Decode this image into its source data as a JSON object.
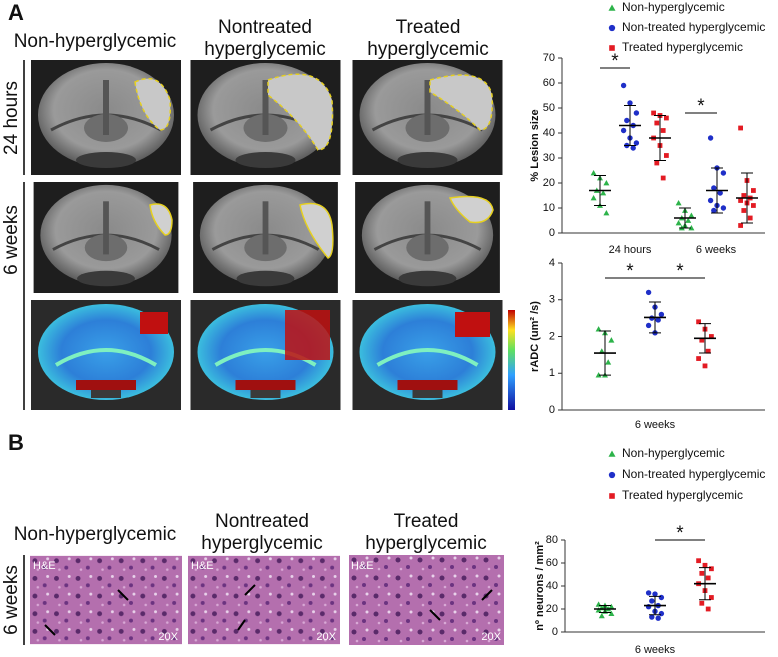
{
  "figure": {
    "panel_a": "A",
    "panel_b": "B",
    "headers_a": {
      "col1": "Non-hyperglycemic",
      "col2": [
        "Nontreated",
        "hyperglycemic"
      ],
      "col3": [
        "Treated",
        "hyperglycemic"
      ]
    },
    "rows_a": [
      "24 hours",
      "6 weeks"
    ],
    "headers_b": {
      "col1": "Non-hyperglycemic",
      "col2": [
        "Nontreated",
        "hyperglycemic"
      ],
      "col3": [
        "Treated",
        "hyperglycemic"
      ]
    },
    "row_b": "6 weeks",
    "stain": [
      "H&E",
      "H&E",
      "H&E"
    ],
    "magnification": [
      "20X",
      "20X",
      "20X"
    ]
  },
  "chart_data": [
    {
      "type": "dot",
      "ylabel": "% Lesion size",
      "categories": [
        "24 hours",
        "6 weeks"
      ],
      "ylim": [
        0,
        70
      ],
      "yticks": [
        0,
        10,
        20,
        30,
        40,
        50,
        60,
        70
      ],
      "annotations": [
        "*",
        "*"
      ],
      "series": [
        {
          "name": "Non-hyperglycemic",
          "color": "#2db34a",
          "marker": "triangle",
          "values": [
            [
              24,
              22,
              20,
              17,
              16,
              14,
              11,
              8
            ],
            [
              12,
              9,
              7,
              6,
              5,
              4,
              3,
              2,
              2
            ]
          ],
          "mean": [
            17,
            6
          ],
          "sd": [
            6,
            4
          ]
        },
        {
          "name": "Non-treated hyperglycemic",
          "color": "#1f2fc8",
          "marker": "circle",
          "values": [
            [
              59,
              52,
              48,
              45,
              43,
              41,
              38,
              36,
              35,
              34
            ],
            [
              38,
              26,
              24,
              18,
              16,
              13,
              11,
              10,
              9
            ]
          ],
          "mean": [
            43,
            17
          ],
          "sd": [
            8,
            9
          ]
        },
        {
          "name": "Treated hyperglycemic",
          "color": "#e31b23",
          "marker": "square",
          "values": [
            [
              48,
              47,
              46,
              44,
              41,
              38,
              35,
              31,
              28,
              22
            ],
            [
              42,
              21,
              17,
              15,
              14,
              13,
              12,
              11,
              9,
              6,
              3
            ]
          ],
          "mean": [
            38,
            14
          ],
          "sd": [
            9,
            10
          ]
        }
      ]
    },
    {
      "type": "dot",
      "ylabel": "rADC (um² /s)",
      "categories": [
        "6 weeks"
      ],
      "ylim": [
        0,
        4
      ],
      "yticks": [
        0,
        1,
        2,
        3,
        4
      ],
      "annotations": [
        "*",
        "*"
      ],
      "series": [
        {
          "color": "#2db34a",
          "marker": "triangle",
          "values": [
            [
              2.2,
              2.1,
              1.9,
              1.6,
              1.3,
              0.95,
              0.95
            ]
          ],
          "mean": [
            1.55
          ],
          "sd": [
            0.6
          ]
        },
        {
          "color": "#1f2fc8",
          "marker": "circle",
          "values": [
            [
              3.2,
              2.8,
              2.6,
              2.5,
              2.45,
              2.3,
              2.1
            ]
          ],
          "mean": [
            2.52
          ],
          "sd": [
            0.42
          ]
        },
        {
          "color": "#e31b23",
          "marker": "square",
          "values": [
            [
              2.4,
              2.2,
              2.0,
              1.9,
              1.6,
              1.4,
              1.2
            ]
          ],
          "mean": [
            1.95
          ],
          "sd": [
            0.4
          ]
        }
      ]
    },
    {
      "type": "dot",
      "ylabel": "nº neurons / mm²",
      "categories": [
        "6 weeks"
      ],
      "ylim": [
        0,
        80
      ],
      "yticks": [
        0,
        20,
        40,
        60,
        80
      ],
      "annotations": [
        "*"
      ],
      "series": [
        {
          "name": "Non-hyperglycemic",
          "color": "#2db34a",
          "marker": "triangle",
          "values": [
            [
              24,
              23,
              22,
              21,
              20,
              19,
              18,
              16,
              14
            ]
          ],
          "mean": [
            20
          ],
          "sd": [
            3
          ]
        },
        {
          "name": "Non-treated hyperglycemic",
          "color": "#1f2fc8",
          "marker": "circle",
          "values": [
            [
              34,
              33,
              30,
              27,
              23,
              22,
              18,
              16,
              13,
              12
            ]
          ],
          "mean": [
            23
          ],
          "sd": [
            8
          ]
        },
        {
          "name": "Treated hyperglycemic",
          "color": "#e31b23",
          "marker": "square",
          "values": [
            [
              62,
              58,
              55,
              51,
              47,
              42,
              36,
              30,
              25,
              20
            ]
          ],
          "mean": [
            42
          ],
          "sd": [
            14
          ]
        }
      ]
    }
  ]
}
